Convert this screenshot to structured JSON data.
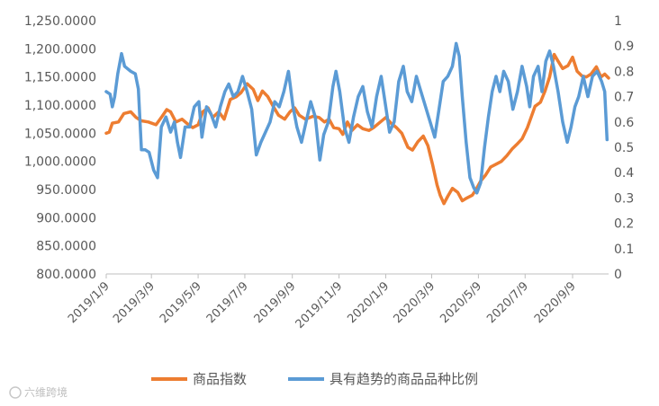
{
  "chart_data": {
    "type": "line",
    "title": "",
    "xlabel": "",
    "ylabel": "",
    "x_ticks": [
      "2019/1/9",
      "2019/3/9",
      "2019/5/9",
      "2019/7/9",
      "2019/9/9",
      "2019/11/9",
      "2020/1/9",
      "2020/3/9",
      "2020/5/9",
      "2020/7/9",
      "2020/9/9"
    ],
    "y_left": {
      "min": 800,
      "max": 1250,
      "step": 50,
      "tick_labels": [
        "800.0000",
        "850.0000",
        "900.0000",
        "950.0000",
        "1,000.0000",
        "1,050.0000",
        "1,100.0000",
        "1,150.0000",
        "1,200.0000",
        "1,250.0000"
      ]
    },
    "y_right": {
      "min": 0,
      "max": 1,
      "step": 0.1,
      "tick_labels": [
        "0",
        "0.1",
        "0.2",
        "0.3",
        "0.4",
        "0.5",
        "0.6",
        "0.7",
        "0.8",
        "0.9",
        "1"
      ]
    },
    "grid": false,
    "legend_position": "bottom",
    "series": [
      {
        "name": "商品指数",
        "axis": "left",
        "color": "#ED7D31",
        "points": [
          [
            "2019-01-09",
            1050
          ],
          [
            "2019-01-13",
            1052
          ],
          [
            "2019-01-17",
            1068
          ],
          [
            "2019-01-25",
            1070
          ],
          [
            "2019-02-01",
            1085
          ],
          [
            "2019-02-10",
            1088
          ],
          [
            "2019-02-17",
            1078
          ],
          [
            "2019-02-24",
            1072
          ],
          [
            "2019-03-05",
            1070
          ],
          [
            "2019-03-15",
            1065
          ],
          [
            "2019-03-23",
            1080
          ],
          [
            "2019-03-29",
            1092
          ],
          [
            "2019-04-03",
            1088
          ],
          [
            "2019-04-10",
            1070
          ],
          [
            "2019-04-18",
            1075
          ],
          [
            "2019-04-24",
            1068
          ],
          [
            "2019-05-02",
            1060
          ],
          [
            "2019-05-09",
            1065
          ],
          [
            "2019-05-15",
            1088
          ],
          [
            "2019-05-22",
            1095
          ],
          [
            "2019-05-28",
            1078
          ],
          [
            "2019-06-05",
            1088
          ],
          [
            "2019-06-12",
            1075
          ],
          [
            "2019-06-20",
            1110
          ],
          [
            "2019-06-28",
            1115
          ],
          [
            "2019-07-04",
            1122
          ],
          [
            "2019-07-12",
            1138
          ],
          [
            "2019-07-20",
            1128
          ],
          [
            "2019-07-26",
            1108
          ],
          [
            "2019-08-01",
            1125
          ],
          [
            "2019-08-08",
            1115
          ],
          [
            "2019-08-15",
            1098
          ],
          [
            "2019-08-22",
            1082
          ],
          [
            "2019-08-30",
            1075
          ],
          [
            "2019-09-06",
            1088
          ],
          [
            "2019-09-12",
            1095
          ],
          [
            "2019-09-18",
            1082
          ],
          [
            "2019-09-26",
            1075
          ],
          [
            "2019-10-06",
            1080
          ],
          [
            "2019-10-14",
            1078
          ],
          [
            "2019-10-21",
            1070
          ],
          [
            "2019-10-27",
            1075
          ],
          [
            "2019-11-02",
            1060
          ],
          [
            "2019-11-09",
            1058
          ],
          [
            "2019-11-14",
            1048
          ],
          [
            "2019-11-20",
            1070
          ],
          [
            "2019-11-26",
            1055
          ],
          [
            "2019-12-03",
            1065
          ],
          [
            "2019-12-10",
            1058
          ],
          [
            "2019-12-18",
            1055
          ],
          [
            "2019-12-24",
            1060
          ],
          [
            "2020-01-02",
            1070
          ],
          [
            "2020-01-09",
            1078
          ],
          [
            "2020-01-16",
            1068
          ],
          [
            "2020-01-23",
            1060
          ],
          [
            "2020-01-30",
            1050
          ],
          [
            "2020-02-07",
            1025
          ],
          [
            "2020-02-13",
            1020
          ],
          [
            "2020-02-20",
            1035
          ],
          [
            "2020-02-27",
            1045
          ],
          [
            "2020-03-04",
            1028
          ],
          [
            "2020-03-10",
            995
          ],
          [
            "2020-03-16",
            958
          ],
          [
            "2020-03-20",
            940
          ],
          [
            "2020-03-25",
            925
          ],
          [
            "2020-03-30",
            938
          ],
          [
            "2020-04-05",
            952
          ],
          [
            "2020-04-12",
            945
          ],
          [
            "2020-04-18",
            930
          ],
          [
            "2020-04-24",
            935
          ],
          [
            "2020-05-01",
            940
          ],
          [
            "2020-05-06",
            950
          ],
          [
            "2020-05-12",
            965
          ],
          [
            "2020-05-18",
            975
          ],
          [
            "2020-05-25",
            990
          ],
          [
            "2020-06-01",
            995
          ],
          [
            "2020-06-08",
            1000
          ],
          [
            "2020-06-15",
            1010
          ],
          [
            "2020-06-22",
            1022
          ],
          [
            "2020-06-28",
            1030
          ],
          [
            "2020-07-05",
            1040
          ],
          [
            "2020-07-12",
            1060
          ],
          [
            "2020-07-16",
            1075
          ],
          [
            "2020-07-22",
            1098
          ],
          [
            "2020-07-29",
            1105
          ],
          [
            "2020-08-04",
            1125
          ],
          [
            "2020-08-10",
            1150
          ],
          [
            "2020-08-16",
            1190
          ],
          [
            "2020-08-21",
            1178
          ],
          [
            "2020-08-27",
            1165
          ],
          [
            "2020-09-03",
            1170
          ],
          [
            "2020-09-09",
            1185
          ],
          [
            "2020-09-15",
            1160
          ],
          [
            "2020-09-21",
            1152
          ],
          [
            "2020-09-27",
            1150
          ],
          [
            "2020-10-03",
            1155
          ],
          [
            "2020-10-10",
            1168
          ],
          [
            "2020-10-16",
            1150
          ],
          [
            "2020-10-21",
            1155
          ],
          [
            "2020-10-26",
            1148
          ]
        ]
      },
      {
        "name": "具有趋势的商品品种比例",
        "axis": "right",
        "color": "#5B9BD5",
        "points": [
          [
            "2019-01-09",
            0.72
          ],
          [
            "2019-01-14",
            0.71
          ],
          [
            "2019-01-17",
            0.66
          ],
          [
            "2019-01-20",
            0.7
          ],
          [
            "2019-01-24",
            0.79
          ],
          [
            "2019-01-29",
            0.87
          ],
          [
            "2019-02-02",
            0.82
          ],
          [
            "2019-02-10",
            0.8
          ],
          [
            "2019-02-16",
            0.79
          ],
          [
            "2019-02-20",
            0.73
          ],
          [
            "2019-02-24",
            0.49
          ],
          [
            "2019-03-01",
            0.49
          ],
          [
            "2019-03-06",
            0.48
          ],
          [
            "2019-03-12",
            0.41
          ],
          [
            "2019-03-17",
            0.38
          ],
          [
            "2019-03-22",
            0.58
          ],
          [
            "2019-03-28",
            0.62
          ],
          [
            "2019-04-03",
            0.56
          ],
          [
            "2019-04-08",
            0.6
          ],
          [
            "2019-04-12",
            0.52
          ],
          [
            "2019-04-16",
            0.46
          ],
          [
            "2019-04-22",
            0.58
          ],
          [
            "2019-04-28",
            0.58
          ],
          [
            "2019-05-04",
            0.66
          ],
          [
            "2019-05-10",
            0.68
          ],
          [
            "2019-05-14",
            0.54
          ],
          [
            "2019-05-20",
            0.66
          ],
          [
            "2019-05-26",
            0.63
          ],
          [
            "2019-06-01",
            0.58
          ],
          [
            "2019-06-07",
            0.66
          ],
          [
            "2019-06-13",
            0.72
          ],
          [
            "2019-06-18",
            0.75
          ],
          [
            "2019-06-24",
            0.7
          ],
          [
            "2019-06-30",
            0.72
          ],
          [
            "2019-07-06",
            0.78
          ],
          [
            "2019-07-12",
            0.72
          ],
          [
            "2019-07-18",
            0.65
          ],
          [
            "2019-07-24",
            0.47
          ],
          [
            "2019-07-30",
            0.52
          ],
          [
            "2019-08-05",
            0.56
          ],
          [
            "2019-08-11",
            0.6
          ],
          [
            "2019-08-17",
            0.68
          ],
          [
            "2019-08-23",
            0.66
          ],
          [
            "2019-08-29",
            0.72
          ],
          [
            "2019-09-04",
            0.8
          ],
          [
            "2019-09-10",
            0.66
          ],
          [
            "2019-09-15",
            0.58
          ],
          [
            "2019-09-21",
            0.52
          ],
          [
            "2019-09-27",
            0.6
          ],
          [
            "2019-10-03",
            0.68
          ],
          [
            "2019-10-09",
            0.62
          ],
          [
            "2019-10-15",
            0.45
          ],
          [
            "2019-10-20",
            0.55
          ],
          [
            "2019-10-26",
            0.6
          ],
          [
            "2019-11-01",
            0.74
          ],
          [
            "2019-11-05",
            0.8
          ],
          [
            "2019-11-10",
            0.72
          ],
          [
            "2019-11-16",
            0.58
          ],
          [
            "2019-11-22",
            0.52
          ],
          [
            "2019-11-28",
            0.62
          ],
          [
            "2019-12-04",
            0.7
          ],
          [
            "2019-12-10",
            0.74
          ],
          [
            "2019-12-16",
            0.64
          ],
          [
            "2019-12-22",
            0.58
          ],
          [
            "2019-12-28",
            0.7
          ],
          [
            "2020-01-03",
            0.78
          ],
          [
            "2020-01-09",
            0.66
          ],
          [
            "2020-01-14",
            0.56
          ],
          [
            "2020-01-20",
            0.6
          ],
          [
            "2020-01-26",
            0.76
          ],
          [
            "2020-02-01",
            0.82
          ],
          [
            "2020-02-06",
            0.72
          ],
          [
            "2020-02-12",
            0.68
          ],
          [
            "2020-02-18",
            0.78
          ],
          [
            "2020-02-24",
            0.72
          ],
          [
            "2020-03-01",
            0.66
          ],
          [
            "2020-03-07",
            0.6
          ],
          [
            "2020-03-13",
            0.54
          ],
          [
            "2020-03-18",
            0.64
          ],
          [
            "2020-03-24",
            0.76
          ],
          [
            "2020-03-30",
            0.78
          ],
          [
            "2020-04-05",
            0.82
          ],
          [
            "2020-04-10",
            0.91
          ],
          [
            "2020-04-14",
            0.86
          ],
          [
            "2020-04-18",
            0.7
          ],
          [
            "2020-04-23",
            0.52
          ],
          [
            "2020-04-28",
            0.38
          ],
          [
            "2020-05-03",
            0.34
          ],
          [
            "2020-05-07",
            0.32
          ],
          [
            "2020-05-12",
            0.36
          ],
          [
            "2020-05-17",
            0.5
          ],
          [
            "2020-05-22",
            0.62
          ],
          [
            "2020-05-27",
            0.72
          ],
          [
            "2020-06-01",
            0.78
          ],
          [
            "2020-06-06",
            0.72
          ],
          [
            "2020-06-11",
            0.8
          ],
          [
            "2020-06-17",
            0.76
          ],
          [
            "2020-06-23",
            0.65
          ],
          [
            "2020-06-29",
            0.72
          ],
          [
            "2020-07-05",
            0.82
          ],
          [
            "2020-07-11",
            0.74
          ],
          [
            "2020-07-15",
            0.66
          ],
          [
            "2020-07-20",
            0.78
          ],
          [
            "2020-07-26",
            0.82
          ],
          [
            "2020-07-31",
            0.72
          ],
          [
            "2020-08-05",
            0.84
          ],
          [
            "2020-08-10",
            0.88
          ],
          [
            "2020-08-15",
            0.82
          ],
          [
            "2020-08-21",
            0.72
          ],
          [
            "2020-08-27",
            0.6
          ],
          [
            "2020-09-02",
            0.52
          ],
          [
            "2020-09-07",
            0.58
          ],
          [
            "2020-09-12",
            0.66
          ],
          [
            "2020-09-17",
            0.7
          ],
          [
            "2020-09-23",
            0.78
          ],
          [
            "2020-09-29",
            0.7
          ],
          [
            "2020-10-05",
            0.78
          ],
          [
            "2020-10-11",
            0.8
          ],
          [
            "2020-10-17",
            0.76
          ],
          [
            "2020-10-21",
            0.72
          ],
          [
            "2020-10-24",
            0.53
          ]
        ]
      }
    ]
  },
  "legend": {
    "items": [
      {
        "label": "商品指数",
        "color": "#ED7D31"
      },
      {
        "label": "具有趋势的商品品种比例",
        "color": "#5B9BD5"
      }
    ]
  },
  "watermark": {
    "text": "六维跨境"
  }
}
